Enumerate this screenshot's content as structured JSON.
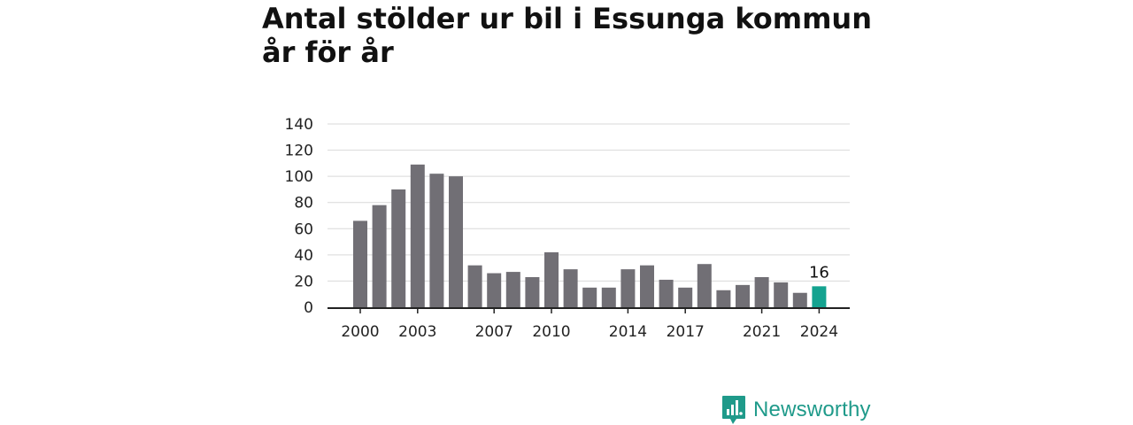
{
  "title_lines": [
    "Antal stölder ur bil i Essunga kommun",
    "år för år"
  ],
  "brand": {
    "name": "Newsworthy",
    "icon": "bar-chart-logo-icon",
    "color": "#1f9a8a"
  },
  "colors": {
    "bar": "#716f75",
    "highlight": "#14a390",
    "grid": "#d9d9d9",
    "axis": "#222222"
  },
  "chart_data": {
    "type": "bar",
    "title": "Antal stölder ur bil i Essunga kommun år för år",
    "xlabel": "",
    "ylabel": "",
    "categories": [
      2000,
      2001,
      2002,
      2003,
      2004,
      2005,
      2006,
      2007,
      2008,
      2009,
      2010,
      2011,
      2012,
      2013,
      2014,
      2015,
      2016,
      2017,
      2018,
      2019,
      2020,
      2021,
      2022,
      2023,
      2024
    ],
    "values": [
      66,
      78,
      90,
      109,
      102,
      100,
      32,
      26,
      27,
      23,
      42,
      29,
      15,
      15,
      29,
      32,
      21,
      15,
      33,
      13,
      17,
      23,
      19,
      11,
      16
    ],
    "ylim": [
      0,
      140
    ],
    "yticks": [
      0,
      20,
      40,
      60,
      80,
      100,
      120,
      140
    ],
    "xtick_labels": [
      2000,
      2003,
      2007,
      2010,
      2014,
      2017,
      2021,
      2024
    ],
    "highlight_category": 2024,
    "annotations": [
      {
        "category": 2024,
        "text": "16"
      }
    ],
    "grid": true,
    "legend": "none"
  }
}
